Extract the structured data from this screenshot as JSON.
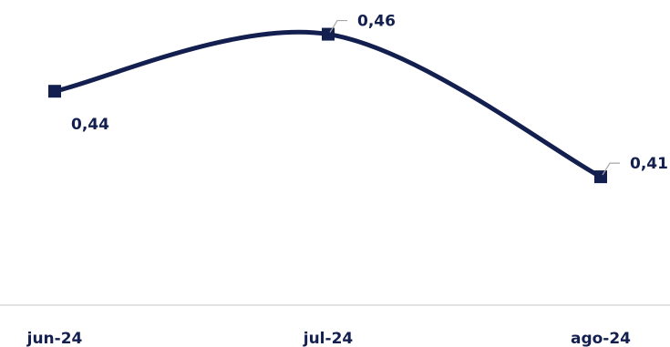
{
  "chart_data": {
    "type": "line",
    "categories": [
      "jun-24",
      "jul-24",
      "ago-24"
    ],
    "series": [
      {
        "values": [
          0.44,
          0.46,
          0.41
        ],
        "data_labels": [
          "0,44",
          "0,46",
          "0,41"
        ]
      }
    ],
    "ylim": [
      0.365,
      0.472
    ],
    "grid": false,
    "legend": "none",
    "smooth": true,
    "colors": {
      "line": "#13204f",
      "label": "#13204f",
      "axis": "#d9d9d9",
      "leader": "#a6a6a6"
    }
  }
}
